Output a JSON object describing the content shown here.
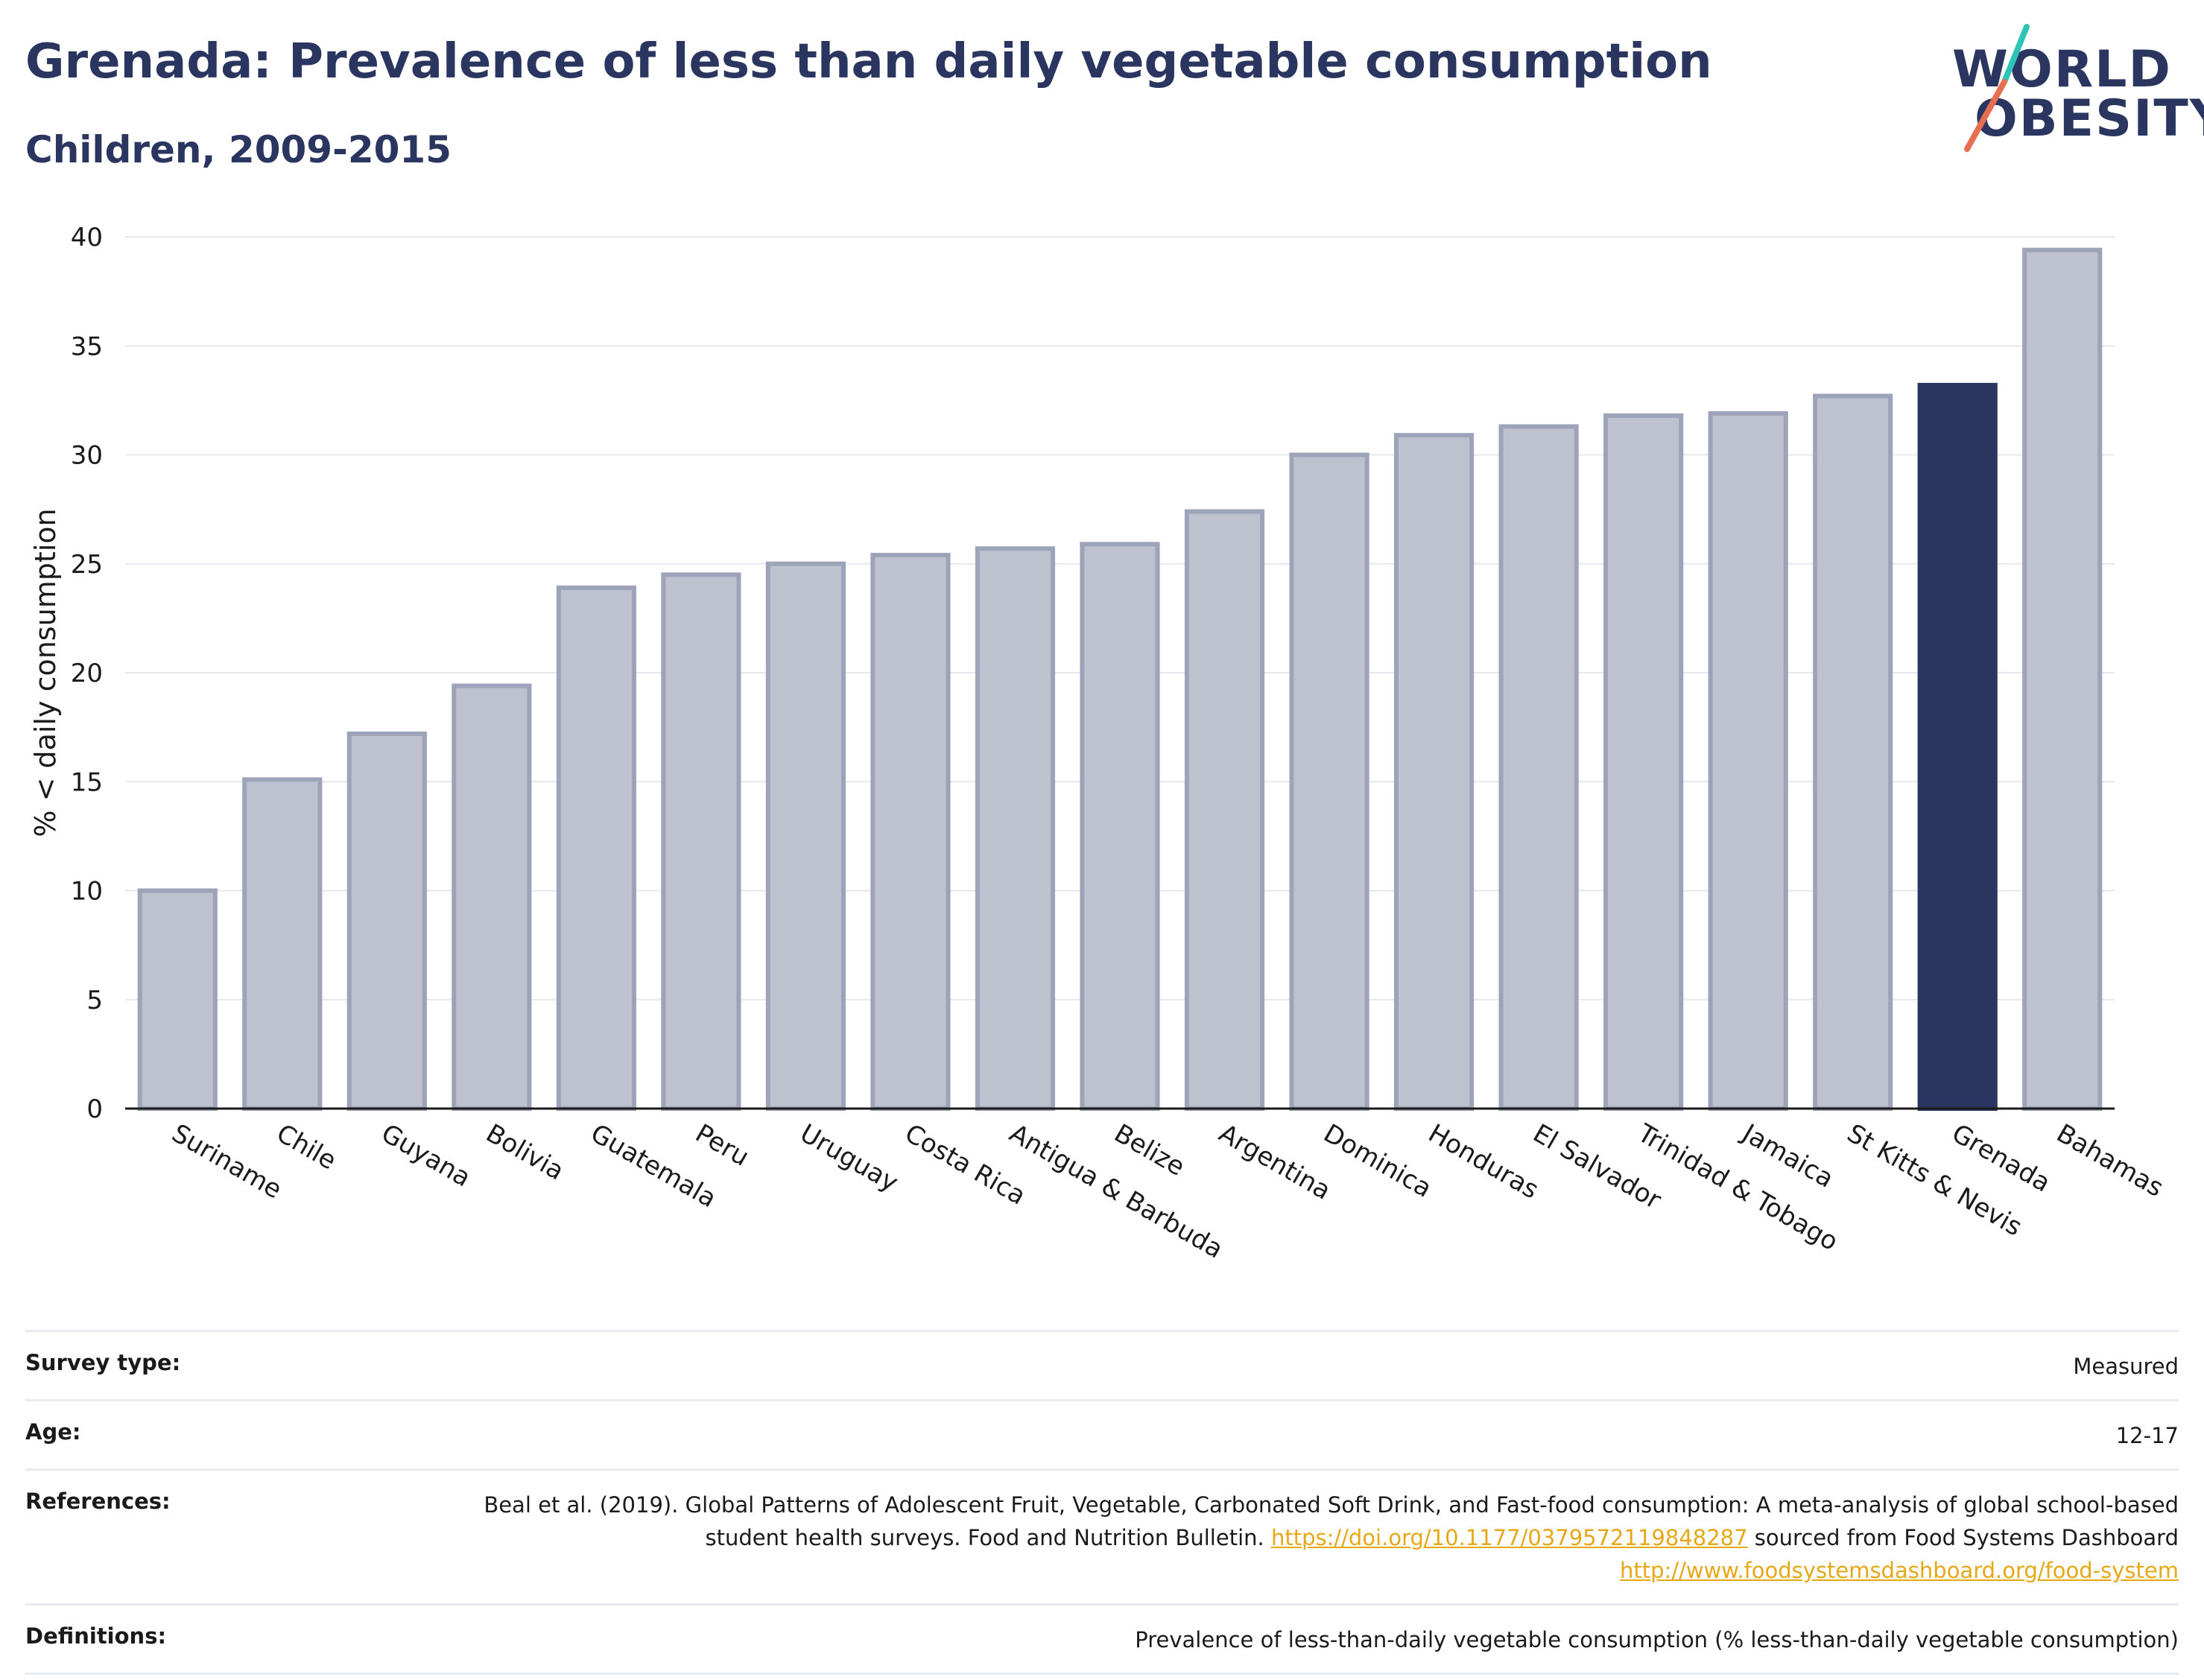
{
  "header": {
    "title": "Grenada: Prevalence of less than daily vegetable consumption",
    "subtitle": "Children, 2009-2015"
  },
  "logo": {
    "line1": "WORLD",
    "line2": "OBESITY",
    "stroke_colors": [
      "#2ec4b6",
      "#e76f51"
    ]
  },
  "chart_data": {
    "type": "bar",
    "title": "Grenada: Prevalence of less than daily vegetable consumption",
    "subtitle": "Children, 2009-2015",
    "ylabel": "% < daily consumption",
    "xlabel": "",
    "ylim": [
      0,
      40
    ],
    "yticks": [
      0,
      5,
      10,
      15,
      20,
      25,
      30,
      35,
      40
    ],
    "grid": true,
    "highlight": "Grenada",
    "colors": {
      "bar": "#bec2cf",
      "bar_edge": "#9da3b8",
      "highlight": "#2a3560"
    },
    "categories": [
      "Suriname",
      "Chile",
      "Guyana",
      "Bolivia",
      "Guatemala",
      "Peru",
      "Uruguay",
      "Costa Rica",
      "Antigua & Barbuda",
      "Belize",
      "Argentina",
      "Dominica",
      "Honduras",
      "El Salvador",
      "Trinidad & Tobago",
      "Jamaica",
      "St Kitts & Nevis",
      "Grenada",
      "Bahamas"
    ],
    "values": [
      10.0,
      15.1,
      17.2,
      19.4,
      23.9,
      24.5,
      25.0,
      25.4,
      25.7,
      25.9,
      27.4,
      30.0,
      30.9,
      31.3,
      31.8,
      31.9,
      32.7,
      33.2,
      39.4
    ]
  },
  "footer": {
    "rows": [
      {
        "label": "Survey type:",
        "value": "Measured"
      },
      {
        "label": "Age:",
        "value": "12-17"
      },
      {
        "label": "References:",
        "value_part1": "Beal et al. (2019). Global Patterns of Adolescent Fruit, Vegetable, Carbonated Soft Drink, and Fast-food consumption: A meta-analysis of global school-based student health surveys. Food and Nutrition Bulletin.",
        "link1": "https://doi.org/10.1177/0379572119848287",
        "value_part2": "sourced from Food Systems Dashboard",
        "link2": "http://www.foodsystemsdashboard.org/food-system"
      },
      {
        "label": "Definitions:",
        "value": "Prevalence of less-than-daily vegetable consumption (% less-than-daily vegetable consumption)"
      }
    ]
  }
}
